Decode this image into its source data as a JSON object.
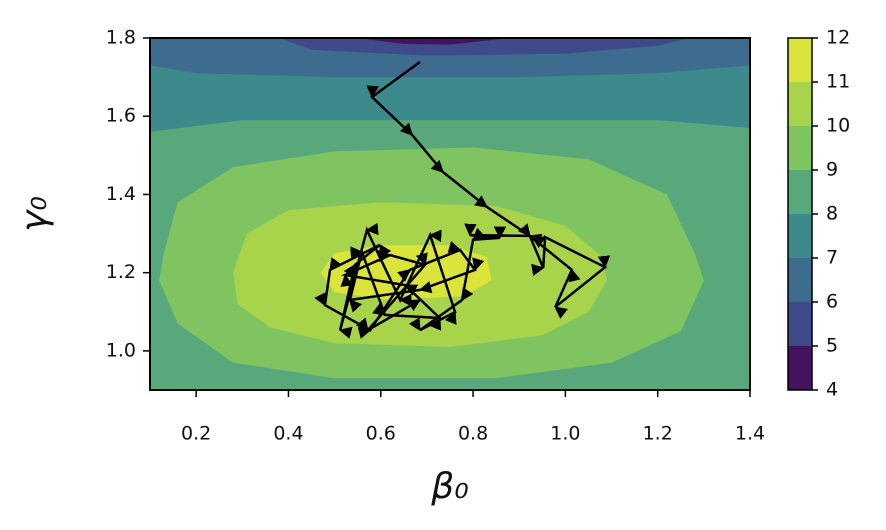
{
  "chart_data": {
    "type": "contour",
    "x_label": "β₀",
    "y_label": "γ₀",
    "xlim": [
      0.1,
      1.4
    ],
    "ylim": [
      0.9,
      1.8
    ],
    "xticks": [
      0.2,
      0.4,
      0.6,
      0.8,
      {
        "value": 1,
        "label": "1.0"
      },
      1.2,
      1.4
    ],
    "yticks": [
      {
        "value": 1,
        "label": "1.0"
      },
      1.2,
      1.4,
      1.6,
      1.8
    ],
    "levels": [
      4,
      5,
      6,
      7,
      8,
      9,
      10,
      11,
      12
    ],
    "level_colors": [
      "#45125f",
      "#3f4a8a",
      "#3d6c8e",
      "#3c8a8b",
      "#59a87c",
      "#80c462",
      "#a8d44b",
      "#dbe43b"
    ],
    "colorbar_ticks": [
      4,
      5,
      6,
      7,
      8,
      9,
      10,
      11,
      12
    ],
    "regions": [
      {
        "band": 4,
        "x": [
          0.1,
          1.4,
          1.4,
          0.1
        ],
        "y": [
          0.9,
          0.9,
          1.8,
          1.8
        ]
      },
      {
        "band": 3,
        "x": [
          0.1,
          0.3,
          0.7,
          1.2,
          1.4,
          1.4,
          0.1
        ],
        "y": [
          1.56,
          1.59,
          1.59,
          1.59,
          1.57,
          1.8,
          1.8
        ]
      },
      {
        "band": 2,
        "x": [
          0.1,
          0.2,
          0.5,
          0.9,
          1.2,
          1.4,
          1.4,
          0.1
        ],
        "y": [
          1.73,
          1.71,
          1.7,
          1.7,
          1.71,
          1.73,
          1.8,
          1.8
        ]
      },
      {
        "band": 1,
        "x": [
          0.38,
          0.45,
          0.7,
          1.0,
          1.2,
          1.27
        ],
        "y": [
          1.8,
          1.77,
          1.755,
          1.76,
          1.78,
          1.8
        ]
      },
      {
        "band": 0,
        "x": [
          0.55,
          0.65,
          0.75,
          0.88
        ],
        "y": [
          1.8,
          1.785,
          1.783,
          1.8
        ]
      },
      {
        "band": 5,
        "x": [
          0.13,
          0.16,
          0.28,
          0.5,
          0.8,
          1.05,
          1.22,
          1.28,
          1.3,
          1.25,
          1.1,
          0.85,
          0.5,
          0.28,
          0.16,
          0.12
        ],
        "y": [
          1.25,
          1.38,
          1.47,
          1.51,
          1.52,
          1.49,
          1.4,
          1.25,
          1.18,
          1.05,
          0.97,
          0.93,
          0.93,
          0.97,
          1.07,
          1.18
        ]
      },
      {
        "band": 6,
        "x": [
          0.28,
          0.31,
          0.4,
          0.6,
          0.85,
          1.0,
          1.08,
          1.09,
          1.05,
          0.95,
          0.75,
          0.5,
          0.36,
          0.29
        ],
        "y": [
          1.2,
          1.3,
          1.36,
          1.38,
          1.37,
          1.32,
          1.24,
          1.18,
          1.1,
          1.04,
          1.01,
          1.02,
          1.06,
          1.12
        ]
      },
      {
        "band": 7,
        "x": [
          0.47,
          0.5,
          0.6,
          0.75,
          0.83,
          0.84,
          0.78,
          0.62,
          0.5
        ],
        "y": [
          1.2,
          1.25,
          1.27,
          1.27,
          1.24,
          1.18,
          1.14,
          1.13,
          1.15
        ]
      }
    ],
    "path": {
      "color": "#000000",
      "x": [
        0.685,
        0.581,
        0.668,
        0.735,
        0.83,
        0.923,
        0.952,
        0.956,
        1.086,
        0.978,
        1.014,
        0.923,
        0.793,
        0.858,
        0.8,
        0.776,
        0.685,
        0.761,
        0.707,
        0.642,
        0.57,
        0.512,
        0.544,
        0.598,
        0.49,
        0.479,
        0.577,
        0.663,
        0.772,
        0.804,
        0.685,
        0.533,
        0.559,
        0.609,
        0.728,
        0.653,
        0.523,
        0.62,
        0.696,
        0.572,
        0.685
      ],
      "y": [
        1.739,
        1.649,
        1.552,
        1.457,
        1.368,
        1.294,
        1.212,
        1.291,
        1.214,
        1.112,
        1.207,
        1.294,
        1.296,
        1.289,
        1.284,
        1.13,
        1.053,
        1.099,
        1.296,
        1.13,
        1.309,
        1.053,
        1.22,
        1.271,
        1.207,
        1.117,
        1.053,
        1.207,
        1.258,
        1.207,
        1.156,
        1.13,
        1.253,
        1.092,
        1.084,
        1.168,
        1.194,
        1.245,
        1.22,
        1.053,
        1.13
      ]
    }
  }
}
